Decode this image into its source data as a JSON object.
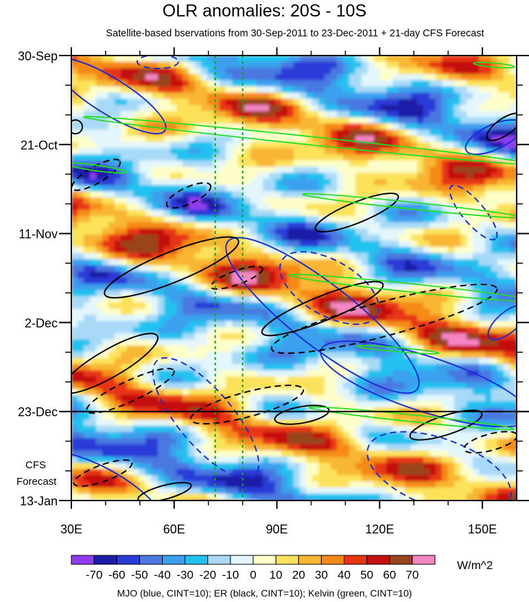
{
  "chart_data": {
    "type": "heatmap",
    "title": "OLR anomalies: 20S - 10S",
    "subtitle": "Satellite-based bservations from 30-Sep-2011 to 23-Dec-2011 + 21-day CFS Forecast",
    "xlabel": "",
    "ylabel": "",
    "x_ticks": [
      "30E",
      "60E",
      "90E",
      "120E",
      "150E"
    ],
    "x_tick_values": [
      30,
      60,
      90,
      120,
      150
    ],
    "xlim": [
      30,
      160
    ],
    "y_ticks": [
      "30-Sep",
      "21-Oct",
      "11-Nov",
      "2-Dec",
      "23-Dec",
      "13-Jan"
    ],
    "y_tick_values": [
      "2011-09-30",
      "2011-10-21",
      "2011-11-11",
      "2011-12-02",
      "2011-12-23",
      "2012-01-13"
    ],
    "ylim": [
      "2011-09-30",
      "2012-01-13"
    ],
    "y_reversed": true,
    "forecast_start": "2011-12-23",
    "forecast_label": "CFS Forecast",
    "reference_longitudes": [
      72,
      80
    ],
    "units": "W/m^2",
    "colorbar": {
      "labels": [
        "-70",
        "-60",
        "-50",
        "-40",
        "-30",
        "-20",
        "-10",
        "0",
        "10",
        "20",
        "30",
        "40",
        "50",
        "60",
        "70"
      ],
      "colors": [
        "#8f3cf0",
        "#1d1da8",
        "#2a3bd8",
        "#4a78e0",
        "#3aa0ee",
        "#22c2f0",
        "#a8daf8",
        "#e2f6fc",
        "#fefec8",
        "#fce25a",
        "#f8b632",
        "#f58a18",
        "#e83414",
        "#c41010",
        "#98441e",
        "#f585c3"
      ]
    },
    "footnote": "MJO (blue, CINT=10); ER (black, CINT=10); Kelvin (green, CINT=10)",
    "overlay_series": [
      {
        "name": "MJO",
        "color": "#1a2ed8"
      },
      {
        "name": "ER",
        "color": "#000000"
      },
      {
        "name": "Kelvin",
        "color": "#22dd22"
      }
    ]
  }
}
